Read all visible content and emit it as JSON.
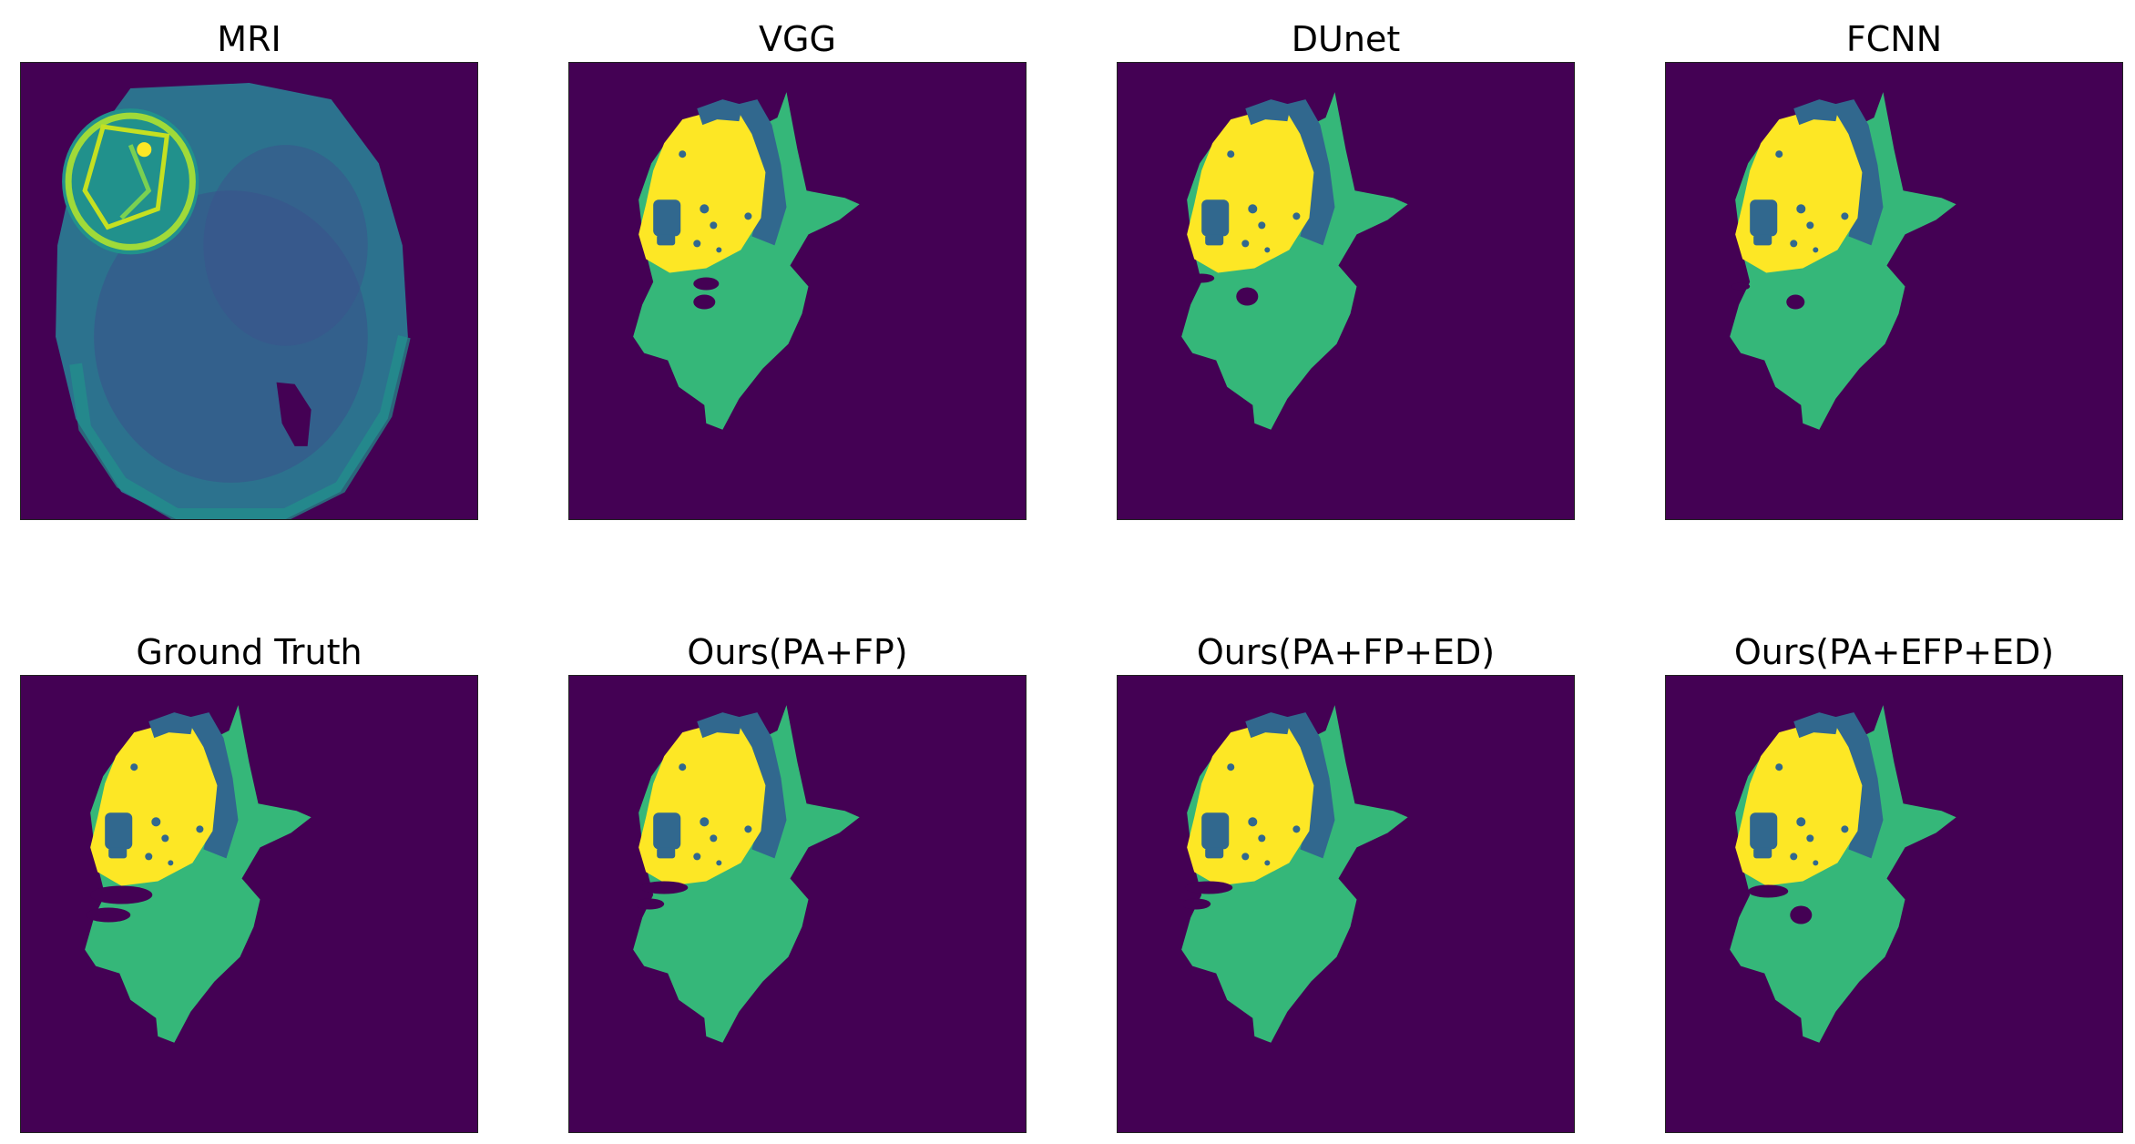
{
  "figure": {
    "panels": [
      {
        "id": "mri",
        "title": "MRI",
        "kind": "mri"
      },
      {
        "id": "vgg",
        "title": "VGG",
        "kind": "seg",
        "variant": "vgg"
      },
      {
        "id": "dunet",
        "title": "DUnet",
        "kind": "seg",
        "variant": "dunet"
      },
      {
        "id": "fcnn",
        "title": "FCNN",
        "kind": "seg",
        "variant": "fcnn"
      },
      {
        "id": "ground-truth",
        "title": "Ground Truth",
        "kind": "seg",
        "variant": "gt"
      },
      {
        "id": "ours-pa-fp",
        "title": "Ours(PA+FP)",
        "kind": "seg",
        "variant": "pafp"
      },
      {
        "id": "ours-pa-fp-ed",
        "title": "Ours(PA+FP+ED)",
        "kind": "seg",
        "variant": "pafped"
      },
      {
        "id": "ours-pa-efp-ed",
        "title": "Ours(PA+EFP+ED)",
        "kind": "seg",
        "variant": "paefped"
      }
    ],
    "colors": {
      "background": "#440154",
      "edema": "#35b779",
      "necrotic": "#31688e",
      "enhancing": "#fde725",
      "mri_dark": "#3b528b",
      "mri_mid": "#2c728e",
      "mri_light": "#21918c"
    }
  }
}
